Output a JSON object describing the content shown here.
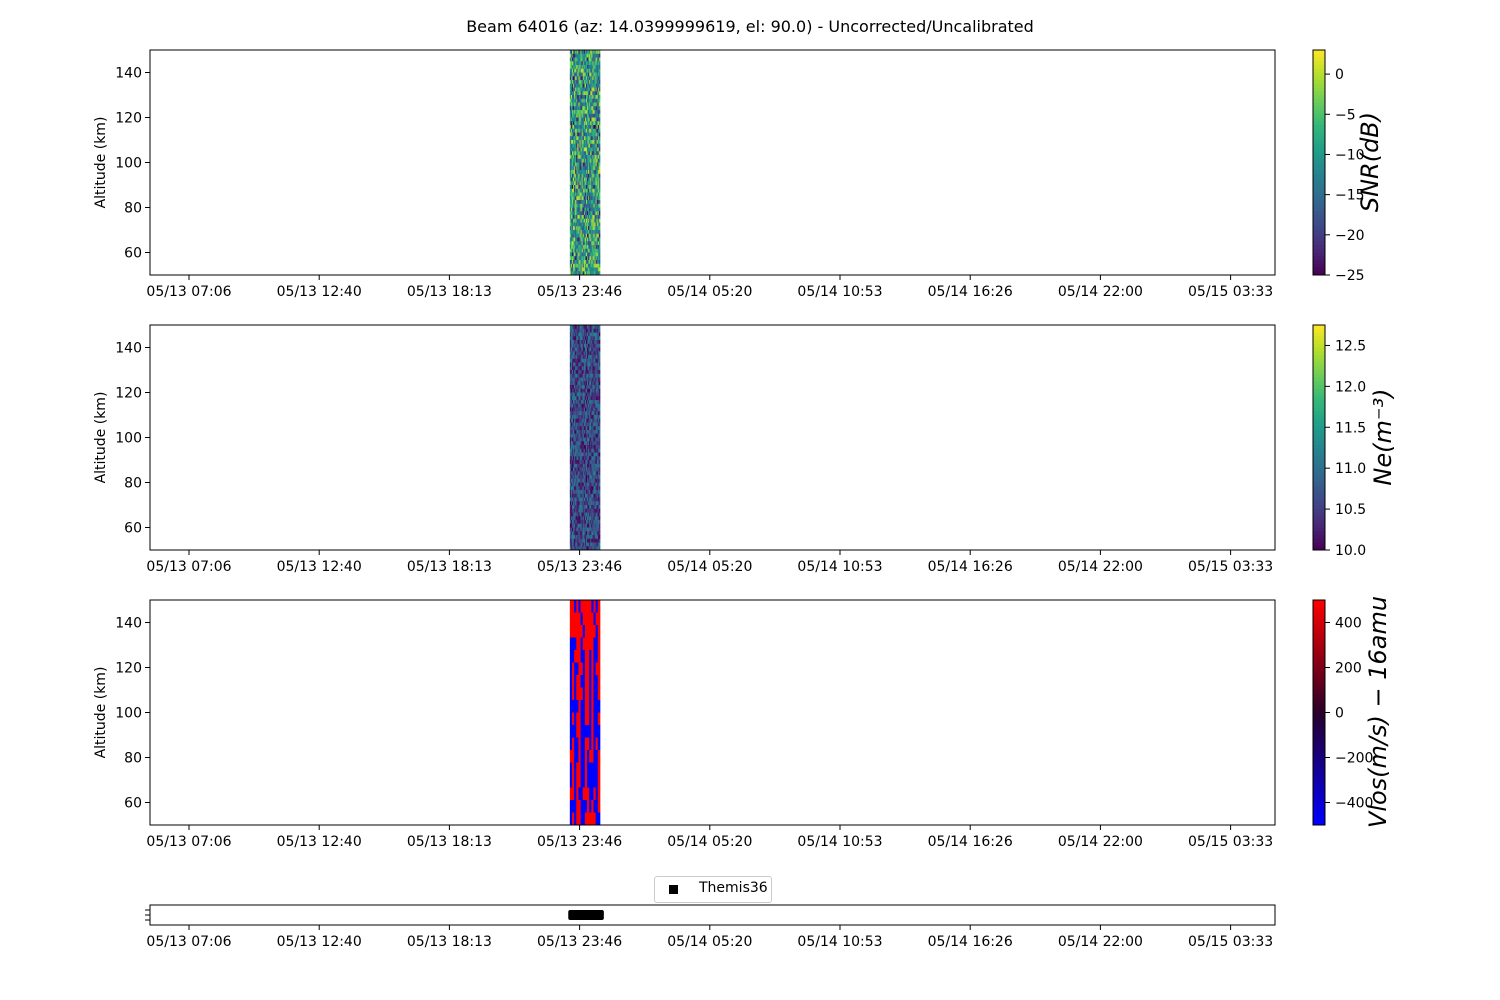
{
  "figure": {
    "title": "Beam 64016 (az: 14.0399999619, el: 90.0) - Uncorrected/Uncalibrated"
  },
  "x_tick_labels": [
    "05/13 07:06",
    "05/13 12:40",
    "05/13 18:13",
    "05/13 23:46",
    "05/14 05:20",
    "05/14 10:53",
    "05/14 16:26",
    "05/14 22:00",
    "05/15 03:33"
  ],
  "chart_data": [
    {
      "type": "heatmap",
      "name": "snr-panel",
      "ylabel": "Altitude (km)",
      "ylim": [
        50,
        150
      ],
      "y_ticks": [
        60,
        80,
        100,
        120,
        140
      ],
      "x_tick_labels": [
        "05/13 07:06",
        "05/13 12:40",
        "05/13 18:13",
        "05/13 23:46",
        "05/14 05:20",
        "05/14 10:53",
        "05/14 16:26",
        "05/14 22:00",
        "05/15 03:33"
      ],
      "data_window": {
        "start": "05/13 23:20",
        "end": "05/14 00:37"
      },
      "colormap": "viridis",
      "colorbar": {
        "label": "SNR(dB)",
        "range": [
          -25,
          3
        ],
        "ticks": [
          0,
          -5,
          -10,
          -15,
          -20,
          -25
        ],
        "tick_labels": [
          "0",
          "−5",
          "−10",
          "−15",
          "−20",
          "−25"
        ]
      },
      "value_distribution": "noisy, mostly -15 to 0 dB",
      "grid": false
    },
    {
      "type": "heatmap",
      "name": "ne-panel",
      "ylabel": "Altitude (km)",
      "ylim": [
        50,
        150
      ],
      "y_ticks": [
        60,
        80,
        100,
        120,
        140
      ],
      "x_tick_labels": [
        "05/13 07:06",
        "05/13 12:40",
        "05/13 18:13",
        "05/13 23:46",
        "05/14 05:20",
        "05/14 10:53",
        "05/14 16:26",
        "05/14 22:00",
        "05/15 03:33"
      ],
      "data_window": {
        "start": "05/13 23:20",
        "end": "05/14 00:37"
      },
      "colormap": "viridis",
      "colorbar": {
        "label": "Ne(m⁻³)",
        "range": [
          10.0,
          12.75
        ],
        "ticks": [
          12.5,
          12.0,
          11.5,
          11.0,
          10.5,
          10.0
        ],
        "tick_labels": [
          "12.5",
          "12.0",
          "11.5",
          "11.0",
          "10.5",
          "10.0"
        ]
      },
      "value_distribution": "noisy, mostly 10.0 to 11.2",
      "grid": false
    },
    {
      "type": "heatmap",
      "name": "vlos-panel",
      "ylabel": "Altitude (km)",
      "ylim": [
        50,
        150
      ],
      "y_ticks": [
        60,
        80,
        100,
        120,
        140
      ],
      "x_tick_labels": [
        "05/13 07:06",
        "05/13 12:40",
        "05/13 18:13",
        "05/13 23:46",
        "05/14 05:20",
        "05/14 10:53",
        "05/14 16:26",
        "05/14 22:00",
        "05/15 03:33"
      ],
      "data_window": {
        "start": "05/13 23:20",
        "end": "05/14 00:37"
      },
      "colormap": "blue-black-red",
      "colorbar": {
        "label": "Vlos(m/s) − 16amu",
        "range": [
          -500,
          500
        ],
        "ticks": [
          400,
          200,
          0,
          -200,
          -400
        ],
        "tick_labels": [
          "400",
          "200",
          "0",
          "−200",
          "−400"
        ]
      },
      "value_distribution": "saturated ±500 stripes",
      "grid": false
    },
    {
      "type": "scatter",
      "name": "themis-panel",
      "x_tick_labels": [
        "05/13 07:06",
        "05/13 12:40",
        "05/13 18:13",
        "05/13 23:46",
        "05/14 05:20",
        "05/14 10:53",
        "05/14 16:26",
        "05/14 22:00",
        "05/15 03:33"
      ],
      "series": [
        {
          "name": "Themis36",
          "start": "05/13 23:16",
          "end": "05/14 00:47",
          "color": "#000000",
          "marker": "square"
        }
      ],
      "legend": "top-center"
    }
  ]
}
